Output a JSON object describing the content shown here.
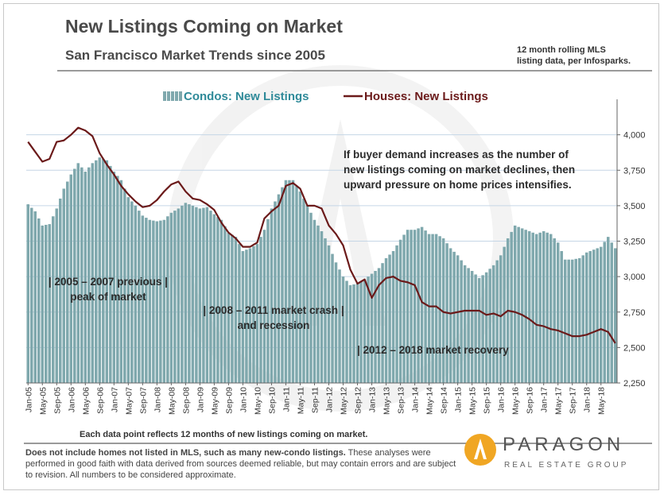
{
  "header": {
    "title": "New Listings Coming on Market",
    "subtitle": "San Francisco Market Trends since 2005",
    "source_note_line1": "12 month rolling MLS",
    "source_note_line2": "listing data, per Infosparks."
  },
  "footer": {
    "data_point_note": "Each data point reflects 12 months of new listings coming on market.",
    "disclaimer_bold": "Does not include homes not listed in MLS, such as many new-condo listings.",
    "disclaimer_rest": " These analyses were performed in good faith with data derived from sources deemed reliable, but may contain errors and are subject to revision. All numbers to be considered  approximate."
  },
  "brand": {
    "name": "PARAGON",
    "tagline": "REAL ESTATE GROUP"
  },
  "colors": {
    "condo_bar": "#7fa8ad",
    "condo_bar_edge": "#5e8a90",
    "house_line": "#6b1a1a",
    "grid": "#c5d6e6",
    "legend_condo_text": "#2f8a99",
    "legend_house_text": "#6b1a1a"
  },
  "chart_data": {
    "type": "bar+line",
    "title": "New Listings Coming on Market",
    "subtitle": "San Francisco Market Trends since 2005",
    "ylim": [
      2250,
      4250
    ],
    "yticks": [
      2250,
      2500,
      2750,
      3000,
      3250,
      3500,
      3750,
      4000
    ],
    "ytick_labels": [
      "2,250",
      "2,500",
      "2,750",
      "3,000",
      "3,250",
      "3,500",
      "3,750",
      "4,000"
    ],
    "y_axis_side": "right",
    "start_month": "2005-01",
    "months_count": 165,
    "xtick_labels": [
      "Jan-05",
      "May-05",
      "Sep-05",
      "Jan-06",
      "May-06",
      "Sep-06",
      "Jan-07",
      "May-07",
      "Sep-07",
      "Jan-08",
      "May-08",
      "Sep-08",
      "Jan-09",
      "May-09",
      "Sep-09",
      "Jan-10",
      "May-10",
      "Sep-10",
      "Jan-11",
      "May-11",
      "Sep-11",
      "Jan-12",
      "May-12",
      "Sep-12",
      "Jan-13",
      "May-13",
      "Sep-13",
      "Jan-14",
      "May-14",
      "Sep-14",
      "Jan-15",
      "May-15",
      "Sep-15",
      "Jan-16",
      "May-16",
      "Sep-16",
      "Jan-17",
      "May-17",
      "Sep-17",
      "Jan-18",
      "May-18"
    ],
    "legend": [
      {
        "label": "Condos: New Listings",
        "kind": "bar"
      },
      {
        "label": "Houses: New Listings",
        "kind": "line"
      }
    ],
    "legend_position": "top-center",
    "series": [
      {
        "name": "Condos: New Listings",
        "kind": "bar",
        "anchors": [
          [
            0,
            3510
          ],
          [
            2,
            3460
          ],
          [
            4,
            3360
          ],
          [
            6,
            3370
          ],
          [
            8,
            3480
          ],
          [
            10,
            3620
          ],
          [
            12,
            3720
          ],
          [
            14,
            3800
          ],
          [
            16,
            3740
          ],
          [
            18,
            3800
          ],
          [
            20,
            3840
          ],
          [
            22,
            3820
          ],
          [
            24,
            3740
          ],
          [
            26,
            3680
          ],
          [
            28,
            3560
          ],
          [
            30,
            3500
          ],
          [
            32,
            3430
          ],
          [
            34,
            3400
          ],
          [
            36,
            3390
          ],
          [
            38,
            3400
          ],
          [
            40,
            3450
          ],
          [
            42,
            3480
          ],
          [
            44,
            3520
          ],
          [
            46,
            3500
          ],
          [
            48,
            3480
          ],
          [
            50,
            3490
          ],
          [
            52,
            3440
          ],
          [
            54,
            3400
          ],
          [
            56,
            3310
          ],
          [
            58,
            3280
          ],
          [
            60,
            3180
          ],
          [
            62,
            3200
          ],
          [
            64,
            3230
          ],
          [
            66,
            3330
          ],
          [
            68,
            3480
          ],
          [
            70,
            3580
          ],
          [
            72,
            3680
          ],
          [
            74,
            3680
          ],
          [
            76,
            3600
          ],
          [
            78,
            3500
          ],
          [
            80,
            3400
          ],
          [
            82,
            3320
          ],
          [
            84,
            3220
          ],
          [
            86,
            3100
          ],
          [
            88,
            3000
          ],
          [
            90,
            2940
          ],
          [
            92,
            2950
          ],
          [
            94,
            2980
          ],
          [
            96,
            3020
          ],
          [
            98,
            3060
          ],
          [
            100,
            3130
          ],
          [
            102,
            3180
          ],
          [
            104,
            3260
          ],
          [
            106,
            3330
          ],
          [
            108,
            3330
          ],
          [
            110,
            3350
          ],
          [
            112,
            3300
          ],
          [
            114,
            3300
          ],
          [
            116,
            3270
          ],
          [
            118,
            3200
          ],
          [
            120,
            3150
          ],
          [
            122,
            3080
          ],
          [
            124,
            3040
          ],
          [
            126,
            2990
          ],
          [
            128,
            3030
          ],
          [
            130,
            3080
          ],
          [
            132,
            3150
          ],
          [
            134,
            3270
          ],
          [
            136,
            3360
          ],
          [
            138,
            3340
          ],
          [
            140,
            3320
          ],
          [
            142,
            3300
          ],
          [
            144,
            3320
          ],
          [
            146,
            3300
          ],
          [
            148,
            3240
          ],
          [
            150,
            3120
          ],
          [
            152,
            3120
          ],
          [
            154,
            3130
          ],
          [
            156,
            3170
          ],
          [
            158,
            3190
          ],
          [
            160,
            3210
          ],
          [
            162,
            3280
          ],
          [
            164,
            3200
          ]
        ]
      },
      {
        "name": "Houses: New Listings",
        "kind": "line",
        "anchors": [
          [
            0,
            3950
          ],
          [
            2,
            3880
          ],
          [
            4,
            3810
          ],
          [
            6,
            3830
          ],
          [
            8,
            3950
          ],
          [
            10,
            3960
          ],
          [
            12,
            4000
          ],
          [
            14,
            4050
          ],
          [
            16,
            4030
          ],
          [
            18,
            3990
          ],
          [
            20,
            3870
          ],
          [
            22,
            3790
          ],
          [
            24,
            3720
          ],
          [
            26,
            3640
          ],
          [
            28,
            3580
          ],
          [
            30,
            3530
          ],
          [
            32,
            3490
          ],
          [
            34,
            3500
          ],
          [
            36,
            3540
          ],
          [
            38,
            3600
          ],
          [
            40,
            3650
          ],
          [
            42,
            3670
          ],
          [
            44,
            3600
          ],
          [
            46,
            3550
          ],
          [
            48,
            3540
          ],
          [
            50,
            3510
          ],
          [
            52,
            3470
          ],
          [
            54,
            3380
          ],
          [
            56,
            3310
          ],
          [
            58,
            3270
          ],
          [
            60,
            3210
          ],
          [
            62,
            3210
          ],
          [
            64,
            3240
          ],
          [
            66,
            3410
          ],
          [
            68,
            3460
          ],
          [
            70,
            3500
          ],
          [
            72,
            3640
          ],
          [
            74,
            3660
          ],
          [
            76,
            3620
          ],
          [
            78,
            3500
          ],
          [
            80,
            3500
          ],
          [
            82,
            3480
          ],
          [
            84,
            3360
          ],
          [
            86,
            3300
          ],
          [
            88,
            3220
          ],
          [
            90,
            3050
          ],
          [
            92,
            2950
          ],
          [
            94,
            2980
          ],
          [
            96,
            2850
          ],
          [
            98,
            2940
          ],
          [
            100,
            2990
          ],
          [
            102,
            3000
          ],
          [
            104,
            2970
          ],
          [
            106,
            2960
          ],
          [
            108,
            2940
          ],
          [
            110,
            2820
          ],
          [
            112,
            2790
          ],
          [
            114,
            2790
          ],
          [
            116,
            2750
          ],
          [
            118,
            2740
          ],
          [
            120,
            2750
          ],
          [
            122,
            2760
          ],
          [
            124,
            2760
          ],
          [
            126,
            2760
          ],
          [
            128,
            2730
          ],
          [
            130,
            2740
          ],
          [
            132,
            2720
          ],
          [
            134,
            2760
          ],
          [
            136,
            2750
          ],
          [
            138,
            2730
          ],
          [
            140,
            2700
          ],
          [
            142,
            2660
          ],
          [
            144,
            2650
          ],
          [
            146,
            2630
          ],
          [
            148,
            2620
          ],
          [
            150,
            2600
          ],
          [
            152,
            2580
          ],
          [
            154,
            2580
          ],
          [
            156,
            2590
          ],
          [
            158,
            2610
          ],
          [
            160,
            2630
          ],
          [
            162,
            2610
          ],
          [
            164,
            2530
          ]
        ]
      }
    ],
    "annotations": [
      {
        "id": "demand-note",
        "lines": [
          "If buyer demand increases as the number of",
          "new listings coming on market declines, then",
          "upward pressure on home prices intensifies."
        ]
      },
      {
        "id": "peak-note",
        "lines": [
          "| 2005 – 2007 previous |",
          "peak of market"
        ]
      },
      {
        "id": "crash-note",
        "lines": [
          "| 2008 – 2011 market crash |",
          "and recession"
        ]
      },
      {
        "id": "recovery-note",
        "lines": [
          "| 2012 – 2018 market recovery"
        ]
      }
    ]
  }
}
